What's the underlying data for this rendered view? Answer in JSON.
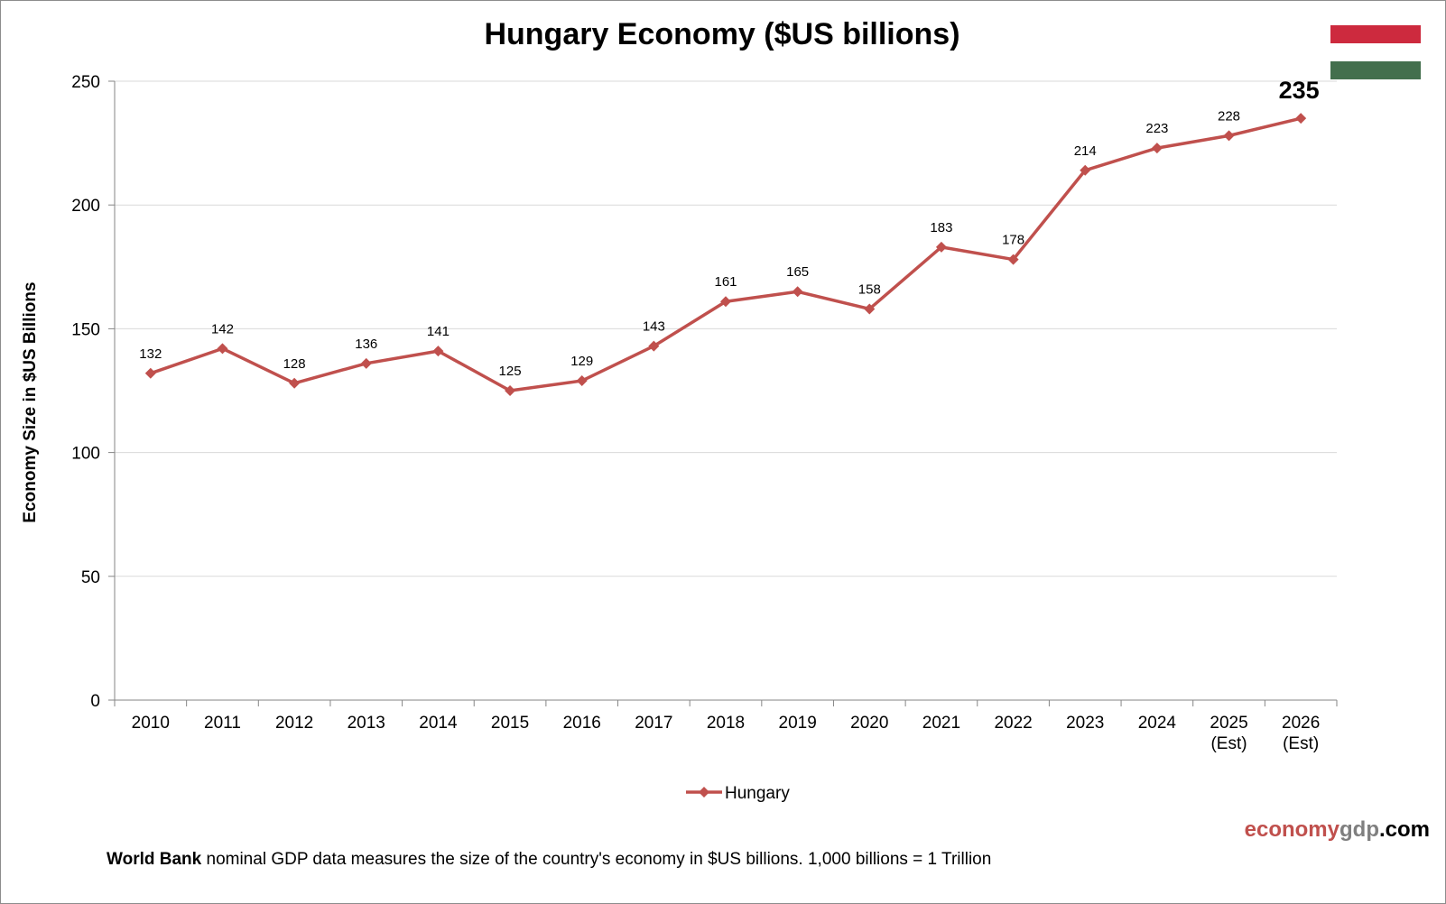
{
  "chart_data": {
    "type": "line",
    "title": "Hungary Economy ($US billions)",
    "xlabel": "",
    "ylabel": "Economy Size in $US Billions",
    "categories": [
      "2010",
      "2011",
      "2012",
      "2013",
      "2014",
      "2015",
      "2016",
      "2017",
      "2018",
      "2019",
      "2020",
      "2021",
      "2022",
      "2023",
      "2024",
      "2025\n(Est)",
      "2026\n(Est)"
    ],
    "series": [
      {
        "name": "Hungary",
        "values": [
          132,
          142,
          128,
          136,
          141,
          125,
          129,
          143,
          161,
          165,
          158,
          183,
          178,
          214,
          223,
          228,
          235
        ],
        "data_labels": [
          "132",
          "142",
          "128",
          "136",
          "141",
          "125",
          "129",
          "143",
          "161",
          "165",
          "158",
          "183",
          "178",
          "214",
          "223",
          "228",
          "235"
        ],
        "color": "#c0504d"
      }
    ],
    "ylim": [
      0,
      250
    ],
    "yticks": [
      0,
      50,
      100,
      150,
      200,
      250
    ],
    "grid": true,
    "legend_position": "bottom",
    "highlight_last_label": true
  },
  "footnote": {
    "bold": "World Bank",
    "text": " nominal GDP data  measures the size of the country's economy in $US billions. 1,000 billions = 1 Trillion"
  },
  "brand": {
    "part1": "economy",
    "part2": "gdp",
    "part3": ".com",
    "colors": {
      "part1": "#c0504d",
      "part2": "#7f7f7f",
      "part3": "#000000"
    }
  },
  "flag": {
    "name": "hungary-flag-icon",
    "colors": [
      "#cd2a3e",
      "#ffffff",
      "#436f4d"
    ]
  }
}
